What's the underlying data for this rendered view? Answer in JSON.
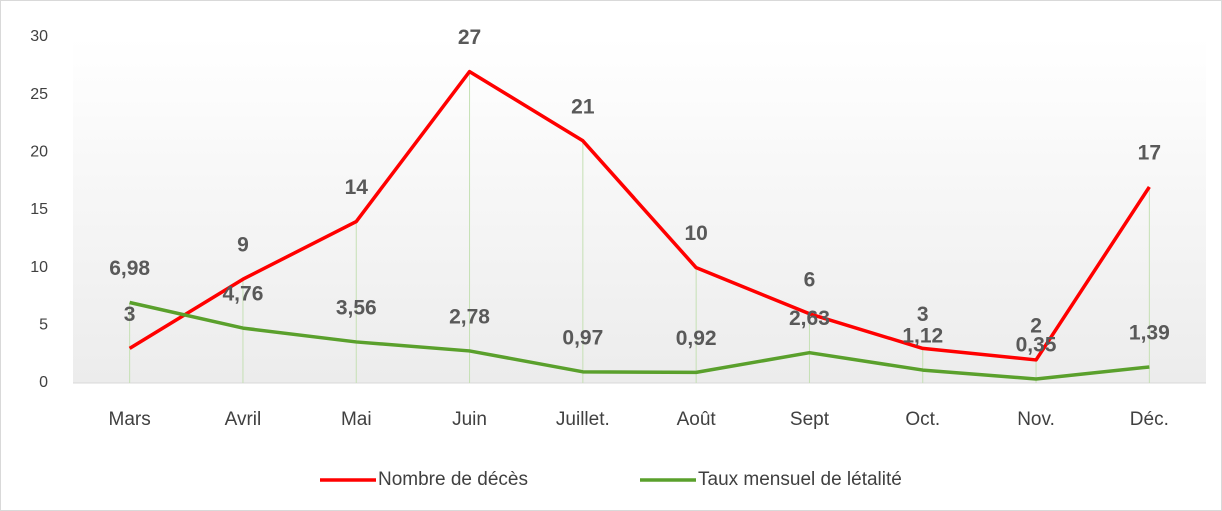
{
  "chart_data": {
    "type": "line",
    "categories": [
      "Mars",
      "Avril",
      "Mai",
      "Juin",
      "Juillet.",
      "Août",
      "Sept",
      "Oct.",
      "Nov.",
      "Déc."
    ],
    "series": [
      {
        "name": "Nombre de décès",
        "color": "#ff0000",
        "values": [
          3,
          9,
          14,
          27,
          21,
          10,
          6,
          3,
          2,
          17
        ]
      },
      {
        "name": "Taux mensuel de létalité",
        "color": "#5aa02c",
        "values": [
          6.98,
          4.76,
          3.56,
          2.78,
          0.97,
          0.92,
          2.63,
          1.12,
          0.35,
          1.39
        ],
        "value_labels": [
          "6,98",
          "4,76",
          "3,56",
          "2,78",
          "0,97",
          "0,92",
          "2,63",
          "1,12",
          "0,35",
          "1,39"
        ]
      }
    ],
    "ylim": [
      0,
      30
    ],
    "yticks": [
      0,
      5,
      10,
      15,
      20,
      25,
      30
    ],
    "legend": "bottom"
  }
}
